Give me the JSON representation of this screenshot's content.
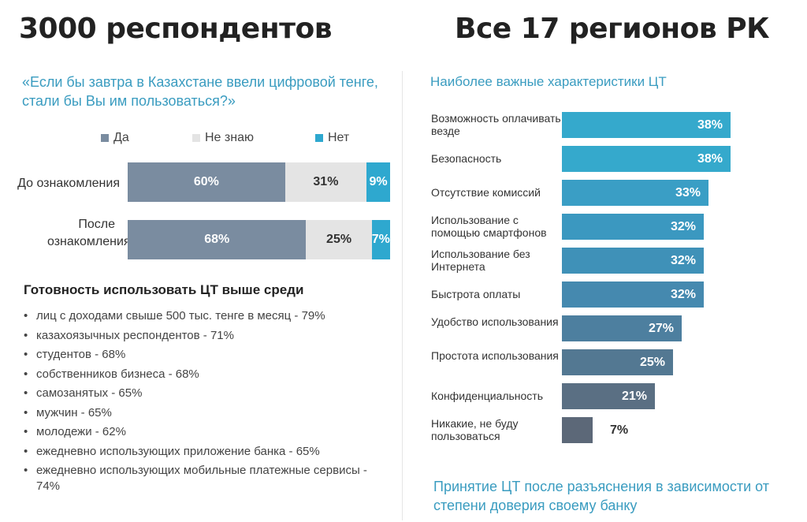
{
  "headings": {
    "left": "3000 респондентов",
    "right": "Все 17 регионов РК"
  },
  "colors": {
    "yes": "#7a8ca0",
    "dont_know": "#e4e4e4",
    "no": "#2ea8cf",
    "accent": "#3a9cc0"
  },
  "chart_data": [
    {
      "type": "bar",
      "orientation": "horizontal",
      "stacked": true,
      "title": "«Если бы завтра в Казахстане ввели цифровой тенге, стали бы Вы им пользоваться?»",
      "categories": [
        "До ознакомления",
        "После ознакомления"
      ],
      "series": [
        {
          "name": "Да",
          "values": [
            60,
            68
          ],
          "labels": [
            "60%",
            "68%"
          ]
        },
        {
          "name": "Не знаю",
          "values": [
            31,
            25
          ],
          "labels": [
            "31%",
            "25%"
          ]
        },
        {
          "name": "Нет",
          "values": [
            9,
            7
          ],
          "labels": [
            "9%",
            "7%"
          ]
        }
      ],
      "legend": "top",
      "unit": "%"
    },
    {
      "type": "bar",
      "orientation": "horizontal",
      "title": "Наиболее важные характеристики ЦТ",
      "categories": [
        "Возможность оплачивать везде",
        "Безопасность",
        "Отсутствие комиссий",
        "Использование с помощью смартфонов",
        "Использование без Интернета",
        "Быстрота оплаты",
        "Удобство использования",
        "Простота использования",
        "Конфиденциальность",
        "Никакие, не буду пользоваться"
      ],
      "values": [
        38,
        38,
        33,
        32,
        32,
        32,
        27,
        25,
        21,
        7
      ],
      "labels": [
        "38%",
        "38%",
        "33%",
        "32%",
        "32%",
        "32%",
        "27%",
        "25%",
        "21%",
        "7%"
      ],
      "xlim": [
        0,
        38
      ],
      "unit": "%"
    }
  ],
  "readiness": {
    "title": "Готовность использовать ЦТ выше среди",
    "items": [
      "лиц с доходами свыше 500 тыс. тенге в месяц - 79%",
      "казахоязычных респондентов - 71%",
      "студентов - 68%",
      "собственников бизнеса - 68%",
      "самозанятых - 65%",
      "мужчин - 65%",
      "молодежи - 62%",
      "ежедневно использующих приложение банка - 65%",
      "ежедневно использующих мобильные платежные сервисы - 74%"
    ]
  },
  "footer": {
    "title": "Принятие ЦТ после разъяснения в зависимости от степени доверия своему банку"
  }
}
